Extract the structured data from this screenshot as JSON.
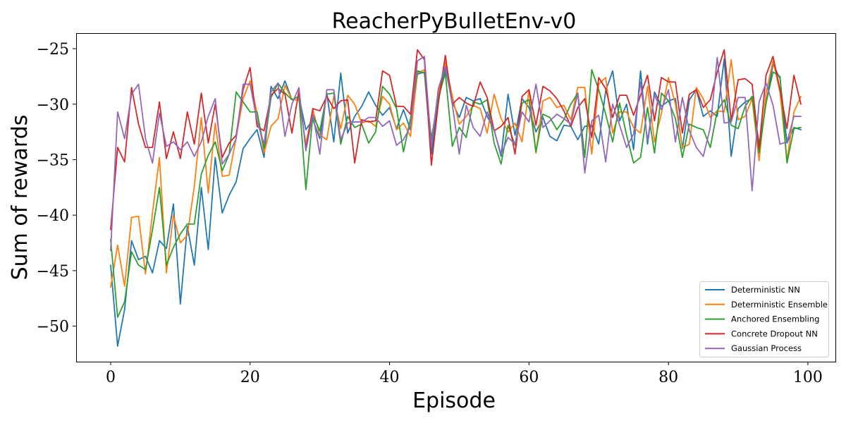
{
  "chart_data": {
    "type": "line",
    "title": "ReacherPyBulletEnv-v0",
    "xlabel": "Episode",
    "ylabel": "Sum of rewards",
    "xlim": [
      -4.95,
      103.95
    ],
    "ylim": [
      -53.2,
      -23.6
    ],
    "xticks": [
      0,
      20,
      40,
      60,
      80,
      100
    ],
    "yticks": [
      -50,
      -45,
      -40,
      -35,
      -30,
      -25
    ],
    "xtick_labels": [
      "0",
      "20",
      "40",
      "60",
      "80",
      "100"
    ],
    "ytick_labels": [
      "−50",
      "−45",
      "−40",
      "−35",
      "−30",
      "−25"
    ],
    "grid": false,
    "legend_position": "lower-right",
    "series": [
      {
        "name": "Deterministic NN",
        "color": "#1f77b4",
        "values": [
          -44.5,
          -51.8,
          -48.5,
          -42.3,
          -44.0,
          -43.7,
          -45.2,
          -42.3,
          -43.0,
          -39.0,
          -48.0,
          -41.0,
          -44.5,
          -37.5,
          -43.1,
          -34.8,
          -39.8,
          -38.2,
          -37.0,
          -34.0,
          -33.1,
          -32.3,
          -34.8,
          -28.4,
          -29.5,
          -27.9,
          -29.6,
          -29.3,
          -32.3,
          -31.4,
          -33.1,
          -29.0,
          -33.4,
          -27.2,
          -32.6,
          -31.1,
          -30.2,
          -28.9,
          -30.1,
          -31.0,
          -30.3,
          -32.2,
          -30.5,
          -32.3,
          -27.3,
          -27.1,
          -34.5,
          -29.6,
          -26.8,
          -29.8,
          -31.2,
          -29.4,
          -29.7,
          -29.5,
          -31.1,
          -32.3,
          -34.7,
          -29.1,
          -32.8,
          -29.5,
          -30.3,
          -32.5,
          -31.2,
          -32.9,
          -33.3,
          -31.9,
          -32.0,
          -33.2,
          -32.0,
          -31.9,
          -33.6,
          -28.8,
          -27.0,
          -31.5,
          -30.0,
          -34.1,
          -27.0,
          -33.6,
          -28.9,
          -30.2,
          -29.7,
          -29.5,
          -34.0,
          -29.6,
          -28.7,
          -31.1,
          -30.6,
          -31.1,
          -25.9,
          -34.7,
          -30.4,
          -29.8,
          -29.5,
          -33.6,
          -29.9,
          -26.4,
          -27.7,
          -33.5,
          -32.1,
          -32.3
        ]
      },
      {
        "name": "Deterministic Ensemble",
        "color": "#ff7f0e",
        "values": [
          -46.5,
          -42.7,
          -46.4,
          -40.2,
          -40.1,
          -45.3,
          -39.8,
          -34.8,
          -45.2,
          -40.0,
          -42.5,
          -41.8,
          -37.4,
          -31.2,
          -38.0,
          -31.7,
          -36.5,
          -36.4,
          -33.0,
          -29.5,
          -27.9,
          -30.8,
          -34.4,
          -32.0,
          -31.3,
          -28.3,
          -29.6,
          -29.6,
          -33.6,
          -30.5,
          -32.8,
          -33.2,
          -29.3,
          -32.2,
          -29.2,
          -30.0,
          -31.7,
          -31.5,
          -32.0,
          -29.3,
          -30.0,
          -32.3,
          -31.7,
          -32.9,
          -27.2,
          -26.9,
          -33.5,
          -29.0,
          -26.2,
          -29.3,
          -31.8,
          -31.1,
          -30.1,
          -30.4,
          -32.6,
          -29.1,
          -31.3,
          -32.5,
          -31.7,
          -33.4,
          -28.7,
          -34.4,
          -29.7,
          -29.4,
          -30.3,
          -30.1,
          -31.4,
          -28.5,
          -28.5,
          -34.5,
          -28.2,
          -27.6,
          -32.6,
          -30.7,
          -30.7,
          -32.1,
          -32.6,
          -28.4,
          -33.4,
          -30.8,
          -27.6,
          -30.0,
          -33.9,
          -33.6,
          -28.5,
          -29.5,
          -31.2,
          -30.6,
          -30.7,
          -26.0,
          -31.4,
          -31.1,
          -29.5,
          -35.1,
          -29.0,
          -26.1,
          -28.9,
          -35.1,
          -30.7,
          -29.3
        ]
      },
      {
        "name": "Anchored Ensembling",
        "color": "#2ca02c",
        "values": [
          -42.2,
          -49.2,
          -47.8,
          -43.3,
          -44.5,
          -44.9,
          -41.3,
          -37.5,
          -44.5,
          -42.9,
          -41.7,
          -40.8,
          -40.8,
          -36.3,
          -34.6,
          -33.4,
          -36.0,
          -34.5,
          -28.9,
          -29.8,
          -30.7,
          -30.7,
          -34.0,
          -29.4,
          -28.1,
          -29.0,
          -29.6,
          -29.3,
          -37.7,
          -31.0,
          -32.4,
          -29.1,
          -29.0,
          -33.6,
          -31.1,
          -32.1,
          -31.8,
          -33.5,
          -32.5,
          -28.4,
          -29.1,
          -30.4,
          -34.3,
          -31.3,
          -27.0,
          -27.2,
          -33.1,
          -29.4,
          -27.2,
          -33.8,
          -32.1,
          -33.0,
          -29.8,
          -30.0,
          -29.6,
          -33.5,
          -35.4,
          -31.9,
          -33.7,
          -29.9,
          -29.6,
          -34.3,
          -30.9,
          -31.2,
          -32.3,
          -31.4,
          -30.0,
          -29.0,
          -34.8,
          -26.9,
          -28.7,
          -30.9,
          -33.4,
          -29.9,
          -32.8,
          -35.3,
          -34.8,
          -30.3,
          -34.4,
          -29.0,
          -29.7,
          -31.3,
          -34.8,
          -31.8,
          -32.1,
          -32.3,
          -33.9,
          -30.6,
          -29.6,
          -31.9,
          -32.2,
          -30.2,
          -29.3,
          -34.4,
          -29.9,
          -27.1,
          -27.5,
          -35.3,
          -32.2,
          -32.1
        ]
      },
      {
        "name": "Concrete Dropout NN",
        "color": "#d62728",
        "values": [
          -41.3,
          -33.9,
          -35.2,
          -28.5,
          -31.8,
          -33.9,
          -33.9,
          -29.8,
          -34.9,
          -32.5,
          -34.9,
          -30.7,
          -33.6,
          -29.0,
          -33.5,
          -30.0,
          -34.8,
          -33.5,
          -32.8,
          -28.7,
          -26.7,
          -32.0,
          -32.4,
          -29.2,
          -28.6,
          -29.1,
          -32.6,
          -28.8,
          -34.0,
          -30.4,
          -30.6,
          -29.3,
          -30.4,
          -29.7,
          -29.6,
          -35.3,
          -31.4,
          -31.6,
          -31.5,
          -27.0,
          -27.4,
          -30.2,
          -30.2,
          -30.9,
          -25.1,
          -26.0,
          -35.5,
          -29.9,
          -25.6,
          -30.0,
          -29.4,
          -29.9,
          -30.2,
          -28.0,
          -29.4,
          -32.4,
          -32.0,
          -31.2,
          -34.5,
          -29.3,
          -28.7,
          -31.9,
          -28.4,
          -28.8,
          -29.5,
          -30.6,
          -32.0,
          -30.3,
          -29.5,
          -33.0,
          -27.6,
          -28.6,
          -31.2,
          -29.2,
          -29.2,
          -31.0,
          -29.2,
          -27.4,
          -31.5,
          -27.6,
          -28.0,
          -28.0,
          -32.6,
          -29.1,
          -28.7,
          -30.3,
          -29.6,
          -27.1,
          -25.1,
          -31.5,
          -27.8,
          -27.7,
          -28.2,
          -34.0,
          -27.4,
          -25.7,
          -28.7,
          -32.2,
          -27.4,
          -30.0
        ]
      },
      {
        "name": "Gaussian Process",
        "color": "#9467bd",
        "values": [
          -43.2,
          -30.7,
          -33.1,
          -29.1,
          -28.2,
          -33.1,
          -35.3,
          -30.8,
          -33.8,
          -33.4,
          -34.1,
          -33.4,
          -34.7,
          -33.4,
          -31.1,
          -29.5,
          -35.4,
          -34.5,
          -33.1,
          -28.2,
          -28.2,
          -31.5,
          -33.6,
          -28.9,
          -28.1,
          -32.9,
          -30.0,
          -28.5,
          -34.2,
          -30.9,
          -34.5,
          -28.7,
          -28.7,
          -33.2,
          -31.7,
          -31.6,
          -31.6,
          -31.2,
          -31.2,
          -32.0,
          -31.5,
          -33.7,
          -33.2,
          -32.0,
          -26.1,
          -25.7,
          -33.8,
          -28.6,
          -26.6,
          -30.0,
          -34.5,
          -30.1,
          -32.1,
          -32.9,
          -30.7,
          -32.4,
          -34.5,
          -33.0,
          -33.6,
          -30.7,
          -31.6,
          -28.2,
          -32.1,
          -31.5,
          -30.9,
          -31.3,
          -31.8,
          -29.0,
          -36.2,
          -31.5,
          -31.0,
          -35.2,
          -30.0,
          -31.9,
          -33.9,
          -32.7,
          -28.0,
          -33.3,
          -29.2,
          -30.5,
          -28.7,
          -33.4,
          -29.4,
          -32.4,
          -33.9,
          -34.7,
          -32.1,
          -25.8,
          -31.7,
          -31.6,
          -29.4,
          -29.4,
          -37.8,
          -29.8,
          -28.1,
          -30.1,
          -33.6,
          -33.4,
          -31.1,
          -31.1
        ]
      }
    ]
  }
}
